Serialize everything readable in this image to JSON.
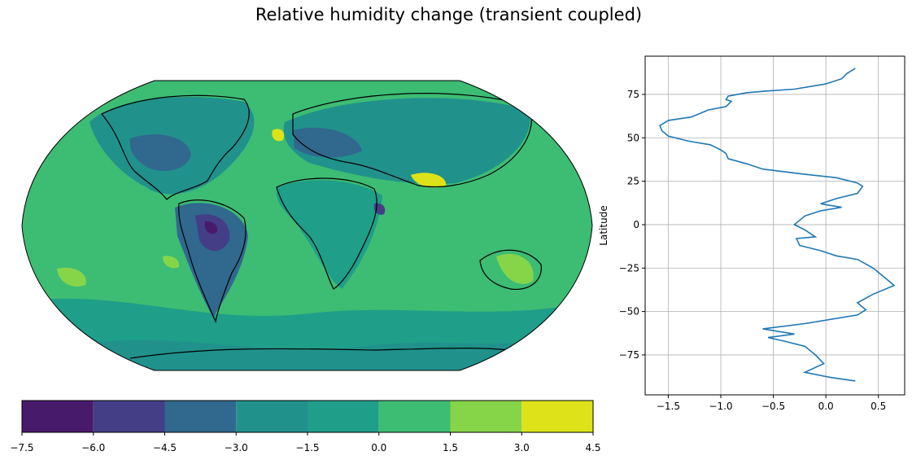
{
  "figure": {
    "title": "Relative humidity change (transient coupled)"
  },
  "chart_data": [
    {
      "type": "heatmap",
      "projection": "Robinson",
      "description_variable": "relative humidity change (filled contours over world map with coastlines)",
      "colorbar": {
        "orientation": "horizontal",
        "levels": [
          -7.5,
          -6.0,
          -4.5,
          -3.0,
          -1.5,
          0.0,
          1.5,
          3.0,
          4.5
        ],
        "tick_labels": [
          "−7.5",
          "−6.0",
          "−4.5",
          "−3.0",
          "−1.5",
          "0.0",
          "1.5",
          "3.0",
          "4.5"
        ],
        "colors": [
          "#481a6c",
          "#433e85",
          "#31688e",
          "#21918c",
          "#1f9e89",
          "#3dbc74",
          "#86d549",
          "#dde318"
        ]
      }
    },
    {
      "type": "line",
      "orientation": "vertical-profile",
      "ylabel": "Latitude",
      "xlabel": "",
      "xlim": [
        -1.72,
        0.75
      ],
      "ylim": [
        -98,
        97
      ],
      "xticks": [
        -1.5,
        -1.0,
        -0.5,
        0.0,
        0.5
      ],
      "xtick_labels": [
        "−1.5",
        "−1.0",
        "−0.5",
        "0.0",
        "0.5"
      ],
      "yticks": [
        75,
        50,
        25,
        0,
        -25,
        -50,
        -75
      ],
      "ytick_labels": [
        "75",
        "50",
        "25",
        "0",
        "−25",
        "−50",
        "−75"
      ],
      "grid": true,
      "series": [
        {
          "color": "#1f77b4",
          "x": [
            0.28,
            0.2,
            0.15,
            0.0,
            -0.3,
            -0.55,
            -0.75,
            -0.93,
            -0.95,
            -0.9,
            -0.95,
            -1.12,
            -1.28,
            -1.5,
            -1.58,
            -1.56,
            -1.5,
            -1.3,
            -1.1,
            -1.0,
            -0.95,
            -0.93,
            -0.75,
            -0.6,
            -0.2,
            0.1,
            0.3,
            0.35,
            0.3,
            0.1,
            -0.05,
            0.15,
            -0.05,
            -0.2,
            -0.3,
            -0.2,
            -0.1,
            -0.28,
            -0.25,
            -0.05,
            0.1,
            0.3,
            0.45,
            0.55,
            0.65,
            0.45,
            0.3,
            0.38,
            0.3,
            -0.2,
            -0.6,
            -0.3,
            -0.55,
            -0.4,
            -0.2,
            -0.1,
            -0.02,
            -0.2,
            0.05,
            0.28
          ],
          "y": [
            90,
            87,
            84,
            81,
            78,
            77,
            76,
            74,
            72,
            71,
            68,
            66,
            62,
            60,
            57,
            54,
            51,
            48,
            46,
            43,
            41,
            38,
            35,
            32,
            29,
            27,
            24,
            22,
            18,
            15,
            12,
            10,
            8,
            5,
            0,
            -3,
            -7,
            -8,
            -12,
            -15,
            -18,
            -20,
            -25,
            -30,
            -35,
            -40,
            -45,
            -49,
            -52,
            -57,
            -60,
            -63,
            -65,
            -67,
            -70,
            -75,
            -80,
            -85,
            -88,
            -90
          ]
        }
      ]
    }
  ]
}
